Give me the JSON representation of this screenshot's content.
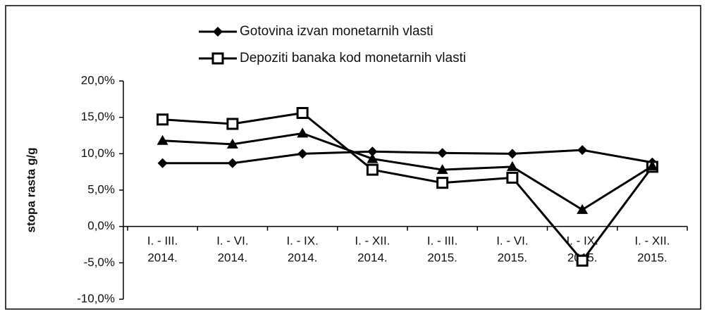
{
  "chart_data": {
    "type": "line",
    "y_label": "stopa rasta g/g",
    "categories": [
      [
        "I. - III.",
        "2014."
      ],
      [
        "I. - VI.",
        "2014."
      ],
      [
        "I. - IX.",
        "2014."
      ],
      [
        "I. - XII.",
        "2014."
      ],
      [
        "I. - III.",
        "2015."
      ],
      [
        "I. - VI.",
        "2015."
      ],
      [
        "I. - IX.",
        "2015."
      ],
      [
        "I. - XII.",
        "2015."
      ]
    ],
    "series": [
      {
        "name": "Gotovina izvan monetarnih vlasti",
        "color": "#000000",
        "marker": "diamond",
        "values": [
          8.7,
          8.7,
          10.0,
          10.3,
          10.1,
          10.0,
          10.5,
          8.8
        ]
      },
      {
        "name": "Depoziti banaka kod monetarnih vlasti",
        "color": "#000000",
        "marker": "square",
        "values": [
          14.7,
          14.1,
          15.6,
          7.8,
          6.0,
          6.7,
          -4.7,
          8.2
        ]
      },
      {
        "color": "#000000",
        "marker": "triangle",
        "values": [
          11.8,
          11.3,
          12.8,
          9.3,
          7.8,
          8.2,
          2.3,
          8.3
        ]
      }
    ],
    "ylim": [
      -10,
      20
    ],
    "yticks": [
      {
        "value": -10,
        "label": "-10,0%"
      },
      {
        "value": -5,
        "label": "-5,0%"
      },
      {
        "value": 0,
        "label": "0,0%"
      },
      {
        "value": 5,
        "label": "5,0%"
      },
      {
        "value": 10,
        "label": "10,0%"
      },
      {
        "value": 15,
        "label": "15,0%"
      },
      {
        "value": 20,
        "label": "20,0%"
      }
    ],
    "legend": "top"
  }
}
